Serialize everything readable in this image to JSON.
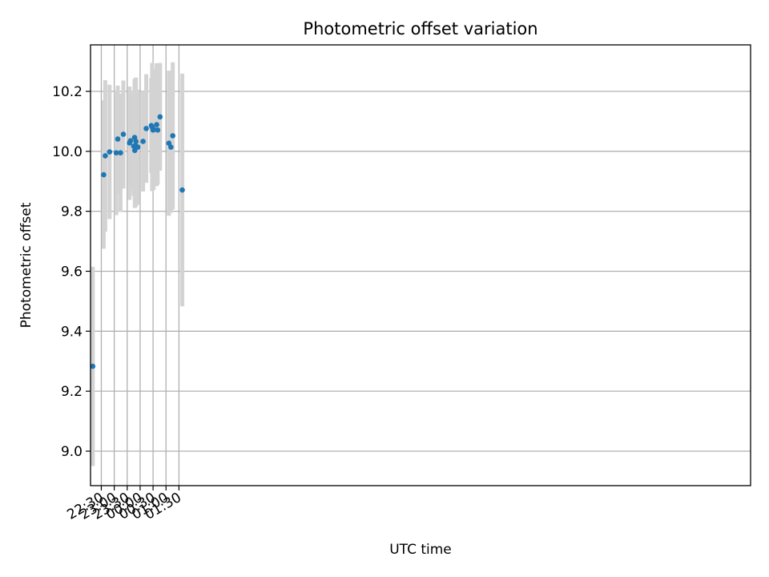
{
  "chart_data": {
    "type": "scatter",
    "title": "Photometric offset variation",
    "xlabel": "UTC time",
    "ylabel": "Photometric offset",
    "x_axis": "time",
    "grid": true,
    "xlim": [
      "22:05",
      "23:35 +1"
    ],
    "ylim": [
      8.885,
      10.355
    ],
    "xticks": [
      "22:30",
      "23:00",
      "23:30",
      "00:00",
      "00:30",
      "01:00",
      "01:30"
    ],
    "yticks": [
      "9.0",
      "9.2",
      "9.4",
      "9.6",
      "9.8",
      "10.0",
      "10.2"
    ],
    "marker_color": "#1f77b4",
    "errorbar_color": "#d3d3d3",
    "points": [
      {
        "t": "22:10:10",
        "y": 9.283,
        "lo": 8.95,
        "hi": 9.615
      },
      {
        "t": "22:35:30",
        "y": 9.922,
        "lo": 9.675,
        "hi": 10.17
      },
      {
        "t": "22:39:10",
        "y": 9.985,
        "lo": 9.732,
        "hi": 10.237
      },
      {
        "t": "22:49:10",
        "y": 9.998,
        "lo": 9.774,
        "hi": 10.222
      },
      {
        "t": "23:04:40",
        "y": 9.995,
        "lo": 9.787,
        "hi": 10.204
      },
      {
        "t": "23:08:10",
        "y": 10.041,
        "lo": 9.858,
        "hi": 10.219
      },
      {
        "t": "23:14:30",
        "y": 9.995,
        "lo": 9.798,
        "hi": 10.193
      },
      {
        "t": "23:21:10",
        "y": 10.057,
        "lo": 9.876,
        "hi": 10.236
      },
      {
        "t": "23:35:30",
        "y": 10.028,
        "lo": 9.838,
        "hi": 10.216
      },
      {
        "t": "23:37:40",
        "y": 10.035,
        "lo": 9.873,
        "hi": 10.197
      },
      {
        "t": "23:45:10",
        "y": 10.017,
        "lo": 9.852,
        "hi": 10.183
      },
      {
        "t": "23:47:10",
        "y": 10.046,
        "lo": 9.85,
        "hi": 10.242
      },
      {
        "t": "23:47:40",
        "y": 10.003,
        "lo": 9.811,
        "hi": 10.195
      },
      {
        "t": "23:49:40",
        "y": 10.019,
        "lo": 9.814,
        "hi": 10.224
      },
      {
        "t": "23:50:20",
        "y": 10.033,
        "lo": 9.82,
        "hi": 10.246
      },
      {
        "t": "23:54:50",
        "y": 10.014,
        "lo": 9.822,
        "hi": 10.206
      },
      {
        "t": "00:06:50",
        "y": 10.033,
        "lo": 9.866,
        "hi": 10.2
      },
      {
        "t": "00:14:10",
        "y": 10.076,
        "lo": 9.895,
        "hi": 10.257
      },
      {
        "t": "00:25:50",
        "y": 10.086,
        "lo": 9.928,
        "hi": 10.244
      },
      {
        "t": "00:27:50",
        "y": 10.081,
        "lo": 9.867,
        "hi": 10.295
      },
      {
        "t": "00:29:50",
        "y": 10.071,
        "lo": 9.877,
        "hi": 10.265
      },
      {
        "t": "00:31:20",
        "y": 10.073,
        "lo": 9.871,
        "hi": 10.275
      },
      {
        "t": "00:38:20",
        "y": 10.089,
        "lo": 9.884,
        "hi": 10.294
      },
      {
        "t": "00:40:40",
        "y": 10.071,
        "lo": 9.889,
        "hi": 10.253
      },
      {
        "t": "00:46:10",
        "y": 10.115,
        "lo": 9.935,
        "hi": 10.295
      },
      {
        "t": "01:06:40",
        "y": 10.027,
        "lo": 9.785,
        "hi": 10.269
      },
      {
        "t": "01:11:20",
        "y": 10.014,
        "lo": 9.795,
        "hi": 10.233
      },
      {
        "t": "01:15:40",
        "y": 10.052,
        "lo": 9.806,
        "hi": 10.297
      },
      {
        "t": "01:37:40",
        "y": 9.871,
        "lo": 9.483,
        "hi": 10.259
      }
    ]
  }
}
